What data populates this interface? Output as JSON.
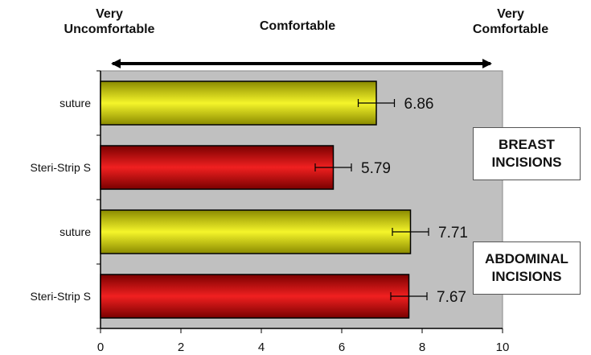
{
  "header": {
    "left": [
      "Very",
      "Uncomfortable"
    ],
    "center": "Comfortable",
    "right": [
      "Very",
      "Comfortable"
    ]
  },
  "groups": [
    {
      "lines": [
        "BREAST",
        "INCISIONS"
      ]
    },
    {
      "lines": [
        "ABDOMINAL",
        "INCISIONS"
      ]
    }
  ],
  "chart_data": {
    "type": "bar",
    "orientation": "horizontal",
    "categories": [
      "suture",
      "Steri-Strip S",
      "suture",
      "Steri-Strip S"
    ],
    "values": [
      6.86,
      5.79,
      7.71,
      7.67
    ],
    "value_labels": [
      "6.86",
      "5.79",
      "7.71",
      "7.67"
    ],
    "error": [
      0.45,
      0.45,
      0.45,
      0.45
    ],
    "bar_colors": [
      "#e8e81a",
      "#e01a1a",
      "#e8e81a",
      "#e01a1a"
    ],
    "xlim": [
      0,
      10
    ],
    "xticks": [
      0,
      2,
      4,
      6,
      8,
      10
    ],
    "xtick_labels": [
      "0",
      "2",
      "4",
      "6",
      "8",
      "10"
    ],
    "plot_background": "#c0c0c0",
    "grid": false,
    "title": "",
    "xlabel": "",
    "ylabel": ""
  }
}
